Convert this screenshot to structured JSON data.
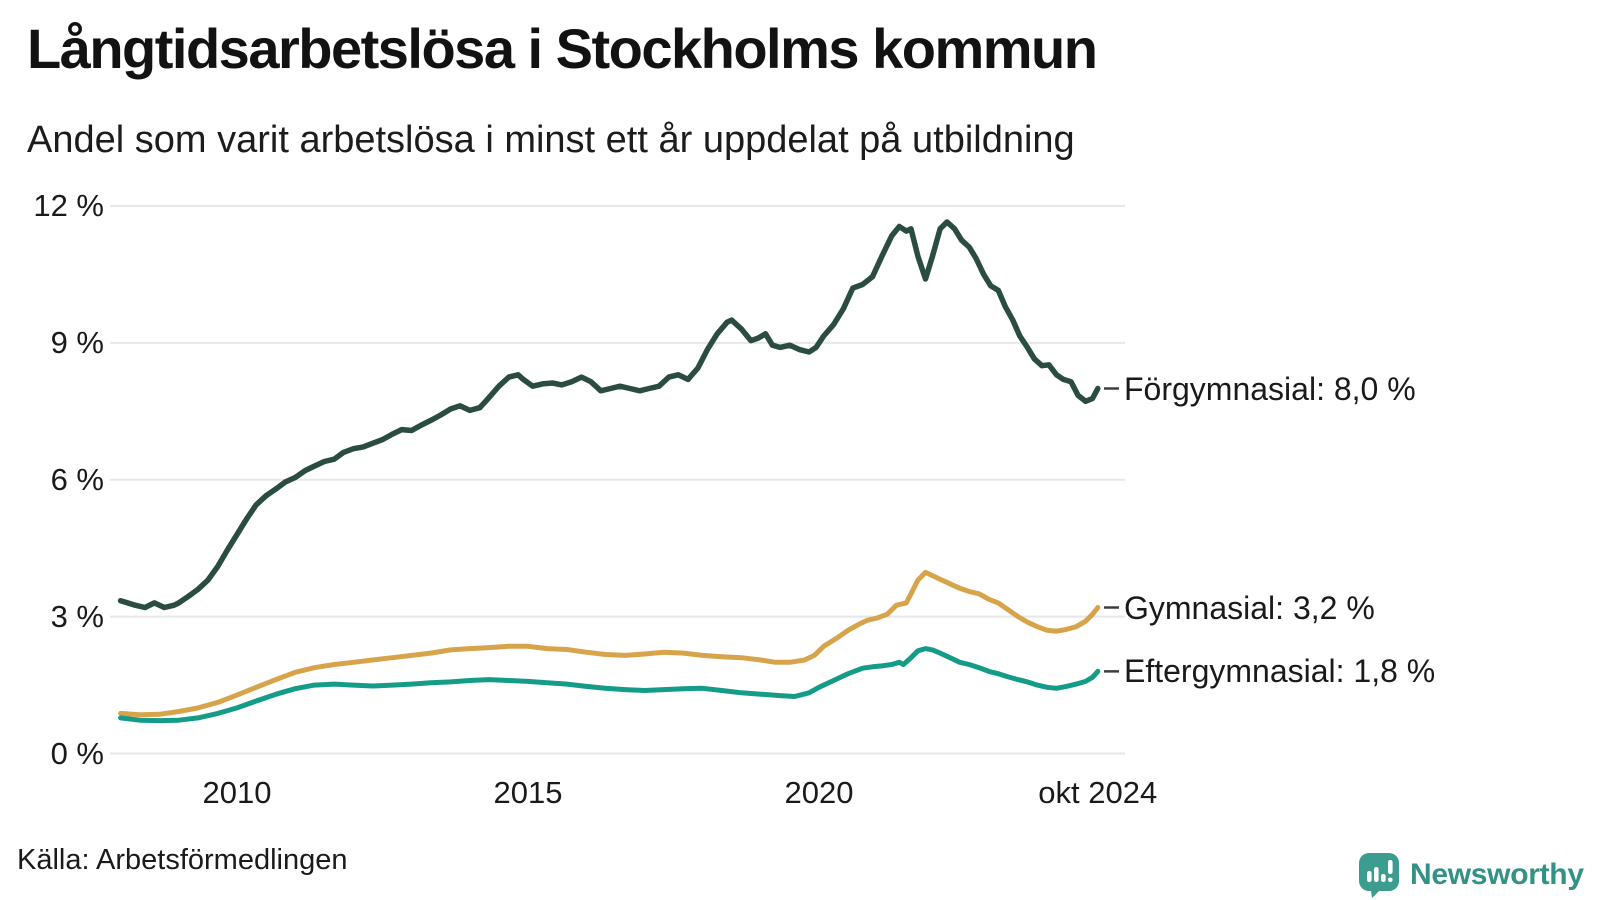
{
  "header": {},
  "footer": {
    "source": "Källa: Arbetsförmedlingen",
    "brand": "Newsworthy"
  },
  "colors": {
    "grid": "#e7e7e7",
    "label_dash": "#3d3d3d",
    "logo_teal": "#3b9c8f",
    "brand_text": "#349185"
  },
  "chart_data": {
    "type": "line",
    "title": "Långtidsarbetslösa i Stockholms kommun",
    "subtitle": "Andel som varit arbetslösa i minst ett år uppdelat på utbildning",
    "unit": "%",
    "grid": "horizontal",
    "legend_position": "right-end-labels",
    "ylim": [
      0,
      12
    ],
    "xlim": [
      2008.0,
      2024.83
    ],
    "y_ticks": [
      {
        "label": "12 %",
        "value": 12
      },
      {
        "label": "9 %",
        "value": 9
      },
      {
        "label": "6 %",
        "value": 6
      },
      {
        "label": "3 %",
        "value": 3
      },
      {
        "label": "0 %",
        "value": 0
      }
    ],
    "x_ticks": [
      {
        "label": "2010",
        "year": 2010
      },
      {
        "label": "2015",
        "year": 2015
      },
      {
        "label": "2020",
        "year": 2020
      },
      {
        "label": "okt 2024",
        "year": 2024.79
      }
    ],
    "series": [
      {
        "name": "Förgymnasial",
        "label": "Förgymnasial: 8,0 %",
        "last_value": 8.0,
        "color": "#2b4c42",
        "width": 5.5,
        "points": [
          [
            2008.0,
            3.35
          ],
          [
            2008.25,
            3.25
          ],
          [
            2008.42,
            3.2
          ],
          [
            2008.58,
            3.3
          ],
          [
            2008.75,
            3.2
          ],
          [
            2008.92,
            3.25
          ],
          [
            2009.0,
            3.3
          ],
          [
            2009.17,
            3.45
          ],
          [
            2009.33,
            3.6
          ],
          [
            2009.5,
            3.8
          ],
          [
            2009.67,
            4.1
          ],
          [
            2009.83,
            4.45
          ],
          [
            2010.0,
            4.8
          ],
          [
            2010.17,
            5.15
          ],
          [
            2010.33,
            5.45
          ],
          [
            2010.5,
            5.65
          ],
          [
            2010.67,
            5.8
          ],
          [
            2010.83,
            5.95
          ],
          [
            2011.0,
            6.05
          ],
          [
            2011.17,
            6.2
          ],
          [
            2011.33,
            6.3
          ],
          [
            2011.5,
            6.4
          ],
          [
            2011.67,
            6.45
          ],
          [
            2011.83,
            6.6
          ],
          [
            2012.0,
            6.68
          ],
          [
            2012.17,
            6.72
          ],
          [
            2012.33,
            6.8
          ],
          [
            2012.5,
            6.88
          ],
          [
            2012.67,
            7.0
          ],
          [
            2012.83,
            7.1
          ],
          [
            2013.0,
            7.08
          ],
          [
            2013.17,
            7.2
          ],
          [
            2013.33,
            7.3
          ],
          [
            2013.5,
            7.42
          ],
          [
            2013.67,
            7.55
          ],
          [
            2013.83,
            7.62
          ],
          [
            2014.0,
            7.52
          ],
          [
            2014.17,
            7.58
          ],
          [
            2014.33,
            7.8
          ],
          [
            2014.5,
            8.05
          ],
          [
            2014.67,
            8.25
          ],
          [
            2014.83,
            8.3
          ],
          [
            2014.92,
            8.2
          ],
          [
            2015.08,
            8.05
          ],
          [
            2015.25,
            8.1
          ],
          [
            2015.42,
            8.12
          ],
          [
            2015.58,
            8.08
          ],
          [
            2015.75,
            8.15
          ],
          [
            2015.92,
            8.25
          ],
          [
            2016.08,
            8.15
          ],
          [
            2016.25,
            7.95
          ],
          [
            2016.42,
            8.0
          ],
          [
            2016.58,
            8.05
          ],
          [
            2016.75,
            8.0
          ],
          [
            2016.92,
            7.95
          ],
          [
            2017.08,
            8.0
          ],
          [
            2017.25,
            8.05
          ],
          [
            2017.42,
            8.25
          ],
          [
            2017.58,
            8.3
          ],
          [
            2017.75,
            8.2
          ],
          [
            2017.92,
            8.45
          ],
          [
            2018.08,
            8.85
          ],
          [
            2018.25,
            9.2
          ],
          [
            2018.42,
            9.45
          ],
          [
            2018.5,
            9.5
          ],
          [
            2018.67,
            9.3
          ],
          [
            2018.83,
            9.05
          ],
          [
            2018.95,
            9.1
          ],
          [
            2019.08,
            9.2
          ],
          [
            2019.2,
            8.95
          ],
          [
            2019.33,
            8.9
          ],
          [
            2019.5,
            8.95
          ],
          [
            2019.67,
            8.85
          ],
          [
            2019.83,
            8.8
          ],
          [
            2019.95,
            8.9
          ],
          [
            2020.08,
            9.15
          ],
          [
            2020.25,
            9.4
          ],
          [
            2020.42,
            9.75
          ],
          [
            2020.58,
            10.2
          ],
          [
            2020.75,
            10.28
          ],
          [
            2020.92,
            10.45
          ],
          [
            2021.08,
            10.9
          ],
          [
            2021.25,
            11.35
          ],
          [
            2021.38,
            11.55
          ],
          [
            2021.5,
            11.45
          ],
          [
            2021.58,
            11.5
          ],
          [
            2021.7,
            10.9
          ],
          [
            2021.83,
            10.4
          ],
          [
            2021.95,
            10.9
          ],
          [
            2022.08,
            11.5
          ],
          [
            2022.2,
            11.65
          ],
          [
            2022.33,
            11.5
          ],
          [
            2022.45,
            11.25
          ],
          [
            2022.58,
            11.1
          ],
          [
            2022.7,
            10.85
          ],
          [
            2022.83,
            10.5
          ],
          [
            2022.95,
            10.25
          ],
          [
            2023.08,
            10.15
          ],
          [
            2023.2,
            9.8
          ],
          [
            2023.33,
            9.5
          ],
          [
            2023.45,
            9.15
          ],
          [
            2023.58,
            8.9
          ],
          [
            2023.7,
            8.65
          ],
          [
            2023.83,
            8.5
          ],
          [
            2023.95,
            8.52
          ],
          [
            2024.08,
            8.3
          ],
          [
            2024.2,
            8.2
          ],
          [
            2024.33,
            8.15
          ],
          [
            2024.45,
            7.85
          ],
          [
            2024.58,
            7.72
          ],
          [
            2024.7,
            7.78
          ],
          [
            2024.79,
            8.0
          ]
        ]
      },
      {
        "name": "Gymnasial",
        "label": "Gymnasial: 3,2 %",
        "last_value": 3.2,
        "color": "#d7a44c",
        "width": 5,
        "points": [
          [
            2008.0,
            0.88
          ],
          [
            2008.33,
            0.85
          ],
          [
            2008.67,
            0.86
          ],
          [
            2009.0,
            0.92
          ],
          [
            2009.33,
            1.0
          ],
          [
            2009.67,
            1.12
          ],
          [
            2010.0,
            1.28
          ],
          [
            2010.33,
            1.45
          ],
          [
            2010.67,
            1.62
          ],
          [
            2011.0,
            1.78
          ],
          [
            2011.33,
            1.88
          ],
          [
            2011.67,
            1.95
          ],
          [
            2012.0,
            2.0
          ],
          [
            2012.33,
            2.05
          ],
          [
            2012.67,
            2.1
          ],
          [
            2013.0,
            2.15
          ],
          [
            2013.33,
            2.2
          ],
          [
            2013.67,
            2.27
          ],
          [
            2014.0,
            2.3
          ],
          [
            2014.33,
            2.32
          ],
          [
            2014.67,
            2.35
          ],
          [
            2015.0,
            2.35
          ],
          [
            2015.33,
            2.3
          ],
          [
            2015.67,
            2.28
          ],
          [
            2016.0,
            2.22
          ],
          [
            2016.33,
            2.17
          ],
          [
            2016.67,
            2.15
          ],
          [
            2017.0,
            2.18
          ],
          [
            2017.33,
            2.22
          ],
          [
            2017.67,
            2.2
          ],
          [
            2018.0,
            2.15
          ],
          [
            2018.33,
            2.12
          ],
          [
            2018.67,
            2.1
          ],
          [
            2019.0,
            2.05
          ],
          [
            2019.25,
            2.0
          ],
          [
            2019.5,
            2.0
          ],
          [
            2019.75,
            2.05
          ],
          [
            2019.92,
            2.15
          ],
          [
            2020.08,
            2.35
          ],
          [
            2020.33,
            2.55
          ],
          [
            2020.5,
            2.7
          ],
          [
            2020.67,
            2.82
          ],
          [
            2020.83,
            2.92
          ],
          [
            2021.0,
            2.97
          ],
          [
            2021.17,
            3.05
          ],
          [
            2021.33,
            3.25
          ],
          [
            2021.5,
            3.3
          ],
          [
            2021.58,
            3.5
          ],
          [
            2021.7,
            3.8
          ],
          [
            2021.83,
            3.97
          ],
          [
            2021.95,
            3.9
          ],
          [
            2022.08,
            3.82
          ],
          [
            2022.25,
            3.72
          ],
          [
            2022.42,
            3.62
          ],
          [
            2022.58,
            3.55
          ],
          [
            2022.75,
            3.5
          ],
          [
            2022.92,
            3.38
          ],
          [
            2023.08,
            3.3
          ],
          [
            2023.25,
            3.15
          ],
          [
            2023.42,
            3.0
          ],
          [
            2023.58,
            2.88
          ],
          [
            2023.75,
            2.78
          ],
          [
            2023.92,
            2.7
          ],
          [
            2024.08,
            2.68
          ],
          [
            2024.25,
            2.72
          ],
          [
            2024.42,
            2.78
          ],
          [
            2024.58,
            2.9
          ],
          [
            2024.7,
            3.05
          ],
          [
            2024.79,
            3.2
          ]
        ]
      },
      {
        "name": "Eftergymnasial",
        "label": "Eftergymnasial: 1,8 %",
        "last_value": 1.8,
        "color": "#149c88",
        "width": 5,
        "points": [
          [
            2008.0,
            0.78
          ],
          [
            2008.33,
            0.73
          ],
          [
            2008.67,
            0.72
          ],
          [
            2009.0,
            0.73
          ],
          [
            2009.33,
            0.78
          ],
          [
            2009.67,
            0.88
          ],
          [
            2010.0,
            1.0
          ],
          [
            2010.33,
            1.15
          ],
          [
            2010.67,
            1.3
          ],
          [
            2011.0,
            1.42
          ],
          [
            2011.33,
            1.5
          ],
          [
            2011.67,
            1.52
          ],
          [
            2012.0,
            1.5
          ],
          [
            2012.33,
            1.48
          ],
          [
            2012.67,
            1.5
          ],
          [
            2013.0,
            1.52
          ],
          [
            2013.33,
            1.55
          ],
          [
            2013.67,
            1.57
          ],
          [
            2014.0,
            1.6
          ],
          [
            2014.33,
            1.62
          ],
          [
            2014.67,
            1.6
          ],
          [
            2015.0,
            1.58
          ],
          [
            2015.33,
            1.55
          ],
          [
            2015.67,
            1.52
          ],
          [
            2016.0,
            1.47
          ],
          [
            2016.33,
            1.43
          ],
          [
            2016.67,
            1.4
          ],
          [
            2017.0,
            1.38
          ],
          [
            2017.33,
            1.4
          ],
          [
            2017.67,
            1.42
          ],
          [
            2018.0,
            1.43
          ],
          [
            2018.33,
            1.38
          ],
          [
            2018.67,
            1.33
          ],
          [
            2019.0,
            1.3
          ],
          [
            2019.33,
            1.27
          ],
          [
            2019.58,
            1.25
          ],
          [
            2019.83,
            1.33
          ],
          [
            2020.0,
            1.45
          ],
          [
            2020.25,
            1.6
          ],
          [
            2020.5,
            1.75
          ],
          [
            2020.75,
            1.87
          ],
          [
            2020.92,
            1.9
          ],
          [
            2021.08,
            1.92
          ],
          [
            2021.25,
            1.95
          ],
          [
            2021.38,
            2.0
          ],
          [
            2021.45,
            1.95
          ],
          [
            2021.58,
            2.1
          ],
          [
            2021.7,
            2.25
          ],
          [
            2021.83,
            2.3
          ],
          [
            2021.95,
            2.27
          ],
          [
            2022.08,
            2.2
          ],
          [
            2022.25,
            2.1
          ],
          [
            2022.42,
            2.0
          ],
          [
            2022.58,
            1.95
          ],
          [
            2022.75,
            1.88
          ],
          [
            2022.92,
            1.8
          ],
          [
            2023.08,
            1.75
          ],
          [
            2023.25,
            1.68
          ],
          [
            2023.42,
            1.62
          ],
          [
            2023.58,
            1.57
          ],
          [
            2023.75,
            1.5
          ],
          [
            2023.92,
            1.45
          ],
          [
            2024.08,
            1.43
          ],
          [
            2024.25,
            1.47
          ],
          [
            2024.42,
            1.52
          ],
          [
            2024.58,
            1.58
          ],
          [
            2024.7,
            1.67
          ],
          [
            2024.79,
            1.8
          ]
        ]
      }
    ]
  }
}
